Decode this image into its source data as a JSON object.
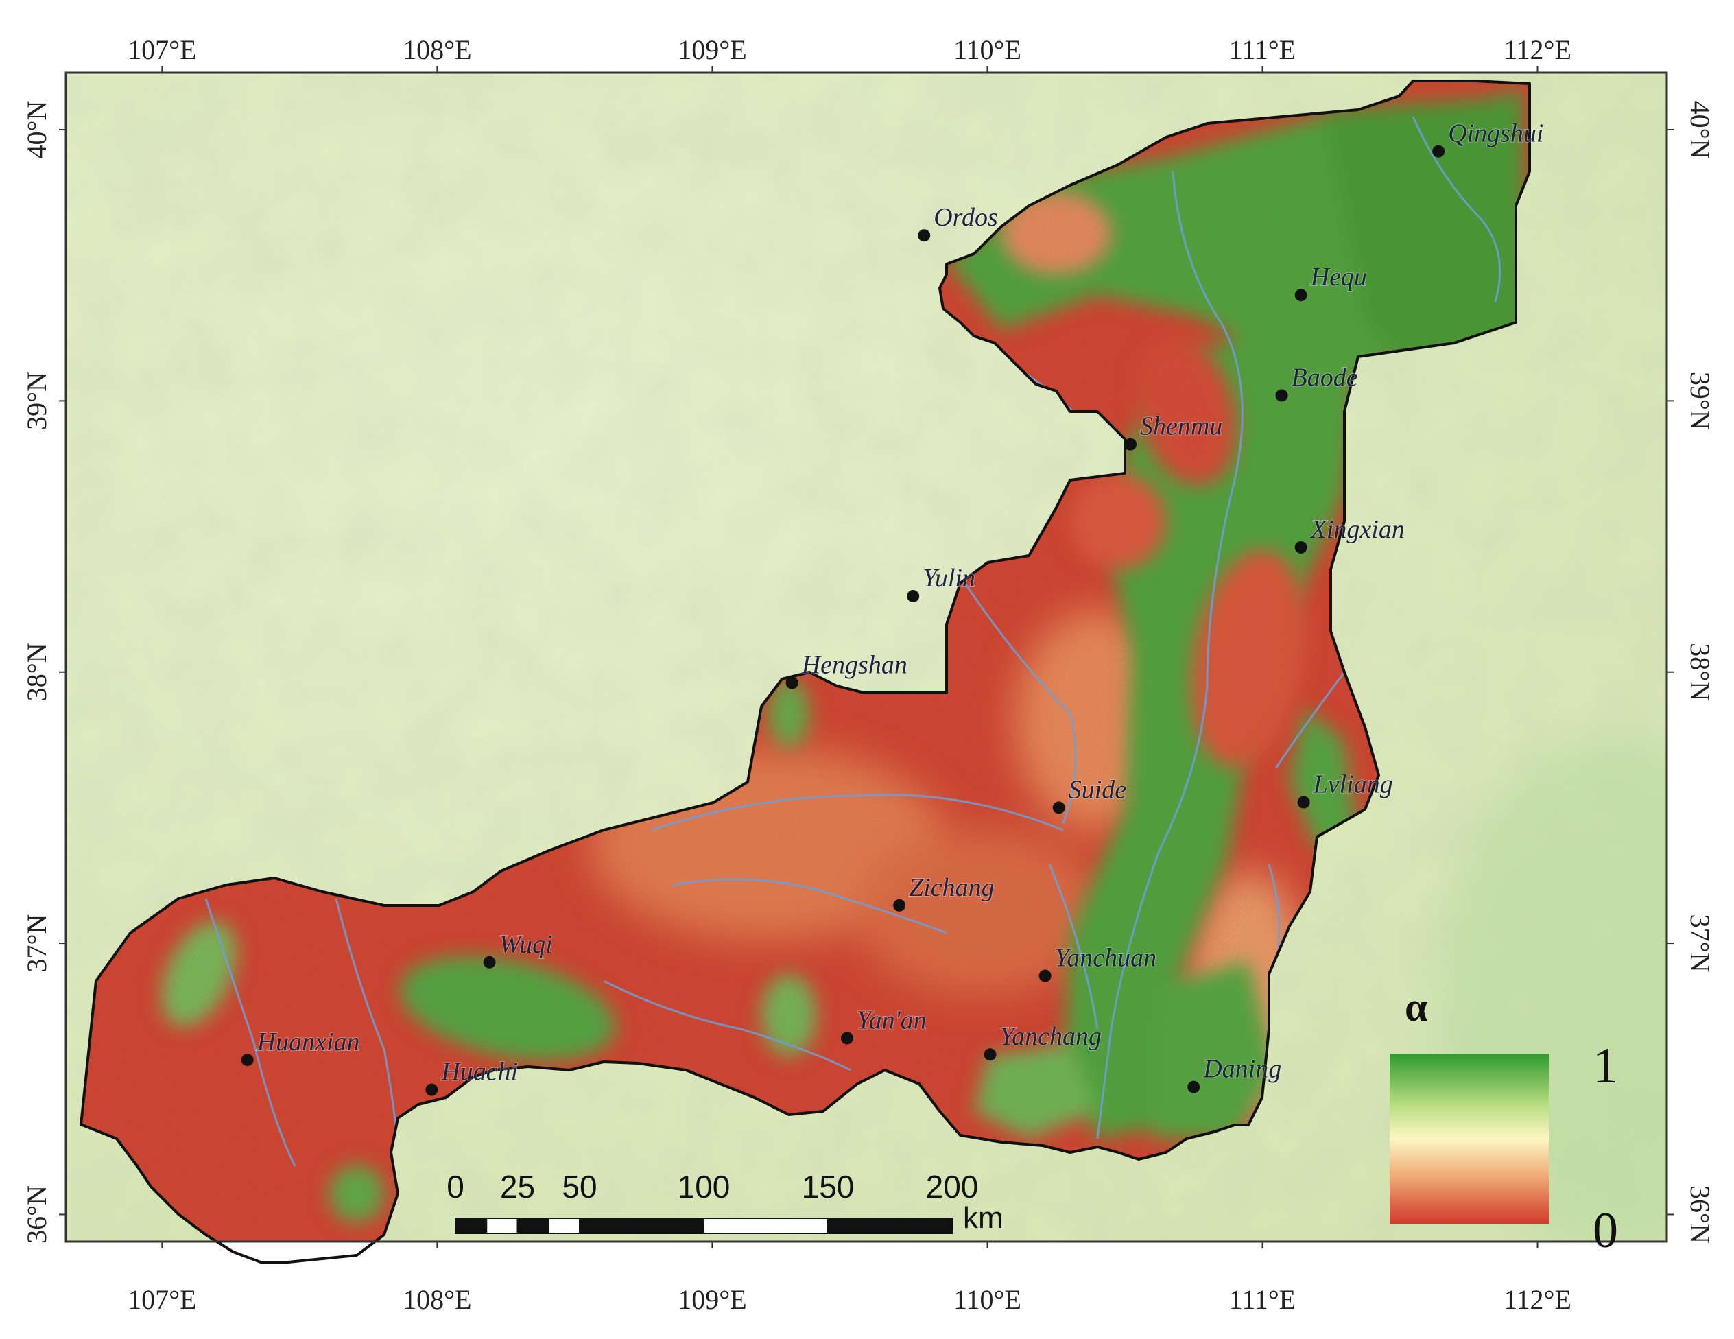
{
  "map": {
    "lon_ticks": [
      107,
      108,
      109,
      110,
      111,
      112
    ],
    "lat_ticks": [
      36,
      37,
      38,
      39,
      40
    ],
    "lon_suffix": "°E",
    "lat_suffix": "°N",
    "extent": {
      "lon_min": 106.65,
      "lon_max": 112.47,
      "lat_min": 35.9,
      "lat_max": 40.21
    }
  },
  "cities": [
    {
      "name": "Qingshui",
      "lon": 111.64,
      "lat": 39.92
    },
    {
      "name": "Ordos",
      "lon": 109.77,
      "lat": 39.61
    },
    {
      "name": "Hequ",
      "lon": 111.14,
      "lat": 39.39
    },
    {
      "name": "Baode",
      "lon": 111.07,
      "lat": 39.02
    },
    {
      "name": "Shenmu",
      "lon": 110.52,
      "lat": 38.84
    },
    {
      "name": "Xingxian",
      "lon": 111.14,
      "lat": 38.46
    },
    {
      "name": "Yulin",
      "lon": 109.73,
      "lat": 38.28
    },
    {
      "name": "Hengshan",
      "lon": 109.29,
      "lat": 37.96
    },
    {
      "name": "Suide",
      "lon": 110.26,
      "lat": 37.5
    },
    {
      "name": "Lvliang",
      "lon": 111.15,
      "lat": 37.52
    },
    {
      "name": "Zichang",
      "lon": 109.68,
      "lat": 37.14
    },
    {
      "name": "Wuqi",
      "lon": 108.19,
      "lat": 36.93
    },
    {
      "name": "Yanchuan",
      "lon": 110.21,
      "lat": 36.88
    },
    {
      "name": "Yan'an",
      "lon": 109.49,
      "lat": 36.65
    },
    {
      "name": "Yanchang",
      "lon": 110.01,
      "lat": 36.59
    },
    {
      "name": "Huanxian",
      "lon": 107.31,
      "lat": 36.57
    },
    {
      "name": "Huachi",
      "lon": 107.98,
      "lat": 36.46
    },
    {
      "name": "Daning",
      "lon": 110.75,
      "lat": 36.47
    }
  ],
  "scale_bar": {
    "labels": [
      "0",
      "25",
      "50",
      "100",
      "150",
      "200"
    ],
    "unit": "km"
  },
  "legend": {
    "title": "α",
    "max_label": "1",
    "min_label": "0",
    "colors": [
      "#2f9a2f",
      "#b8dd80",
      "#fbf6c2",
      "#f0b27c",
      "#d23a2a"
    ]
  },
  "colors": {
    "background_base": "#dbe9b9",
    "background_light": "#edf3d0",
    "high_alpha": "#3a9e3a",
    "low_alpha": "#c7402e",
    "rivers": "#6b9ad0",
    "boundary": "#111111"
  }
}
